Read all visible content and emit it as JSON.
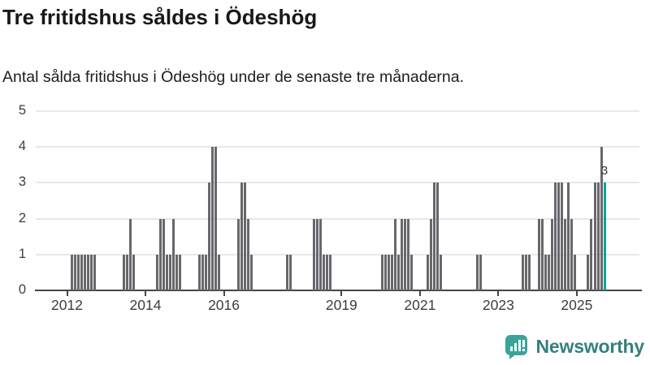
{
  "header": {
    "title": "Tre fritidshus såldes i Ödeshög",
    "subtitle": "Antal sålda fritidshus i Ödeshög under de senaste tre månaderna."
  },
  "chart_data": {
    "type": "bar",
    "title": "Tre fritidshus såldes i Ödeshög",
    "subtitle": "Antal sålda fritidshus i Ödeshög under de senaste tre månaderna.",
    "xlabel": "",
    "ylabel": "",
    "ylim": [
      0,
      5
    ],
    "yticks": [
      0,
      1,
      2,
      3,
      4,
      5
    ],
    "xtick_years": [
      2012,
      2014,
      2016,
      2019,
      2021,
      2023,
      2025
    ],
    "xtick_labels": [
      "2012",
      "2014",
      "2016",
      "2019",
      "2021",
      "2023",
      "2025"
    ],
    "grid": "horizontal",
    "legend": "none",
    "bar_color": "#67676c",
    "highlight_color": "#00a39b",
    "highlight_month": "2025-09",
    "annotation": {
      "month": "2025-09",
      "text": "3"
    },
    "points": [
      {
        "month": "2012-02",
        "value": 1
      },
      {
        "month": "2012-03",
        "value": 1
      },
      {
        "month": "2012-04",
        "value": 1
      },
      {
        "month": "2012-05",
        "value": 1
      },
      {
        "month": "2012-06",
        "value": 1
      },
      {
        "month": "2012-07",
        "value": 1
      },
      {
        "month": "2012-08",
        "value": 1
      },
      {
        "month": "2012-09",
        "value": 1
      },
      {
        "month": "2013-06",
        "value": 1
      },
      {
        "month": "2013-07",
        "value": 1
      },
      {
        "month": "2013-08",
        "value": 2
      },
      {
        "month": "2013-09",
        "value": 1
      },
      {
        "month": "2014-04",
        "value": 1
      },
      {
        "month": "2014-05",
        "value": 2
      },
      {
        "month": "2014-06",
        "value": 2
      },
      {
        "month": "2014-07",
        "value": 1
      },
      {
        "month": "2014-08",
        "value": 1
      },
      {
        "month": "2014-09",
        "value": 2
      },
      {
        "month": "2014-10",
        "value": 1
      },
      {
        "month": "2014-11",
        "value": 1
      },
      {
        "month": "2015-05",
        "value": 1
      },
      {
        "month": "2015-06",
        "value": 1
      },
      {
        "month": "2015-07",
        "value": 1
      },
      {
        "month": "2015-08",
        "value": 3
      },
      {
        "month": "2015-09",
        "value": 4
      },
      {
        "month": "2015-10",
        "value": 4
      },
      {
        "month": "2015-11",
        "value": 1
      },
      {
        "month": "2016-05",
        "value": 2
      },
      {
        "month": "2016-06",
        "value": 3
      },
      {
        "month": "2016-07",
        "value": 3
      },
      {
        "month": "2016-08",
        "value": 2
      },
      {
        "month": "2016-09",
        "value": 1
      },
      {
        "month": "2017-08",
        "value": 1
      },
      {
        "month": "2017-09",
        "value": 1
      },
      {
        "month": "2018-04",
        "value": 2
      },
      {
        "month": "2018-05",
        "value": 2
      },
      {
        "month": "2018-06",
        "value": 2
      },
      {
        "month": "2018-07",
        "value": 1
      },
      {
        "month": "2018-08",
        "value": 1
      },
      {
        "month": "2018-09",
        "value": 1
      },
      {
        "month": "2020-01",
        "value": 1
      },
      {
        "month": "2020-02",
        "value": 1
      },
      {
        "month": "2020-03",
        "value": 1
      },
      {
        "month": "2020-04",
        "value": 1
      },
      {
        "month": "2020-05",
        "value": 2
      },
      {
        "month": "2020-06",
        "value": 1
      },
      {
        "month": "2020-07",
        "value": 2
      },
      {
        "month": "2020-08",
        "value": 2
      },
      {
        "month": "2020-09",
        "value": 2
      },
      {
        "month": "2020-10",
        "value": 1
      },
      {
        "month": "2021-03",
        "value": 1
      },
      {
        "month": "2021-04",
        "value": 2
      },
      {
        "month": "2021-05",
        "value": 3
      },
      {
        "month": "2021-06",
        "value": 3
      },
      {
        "month": "2021-07",
        "value": 1
      },
      {
        "month": "2022-06",
        "value": 1
      },
      {
        "month": "2022-07",
        "value": 1
      },
      {
        "month": "2023-08",
        "value": 1
      },
      {
        "month": "2023-09",
        "value": 1
      },
      {
        "month": "2023-10",
        "value": 1
      },
      {
        "month": "2024-01",
        "value": 2
      },
      {
        "month": "2024-02",
        "value": 2
      },
      {
        "month": "2024-03",
        "value": 1
      },
      {
        "month": "2024-04",
        "value": 1
      },
      {
        "month": "2024-05",
        "value": 2
      },
      {
        "month": "2024-06",
        "value": 3
      },
      {
        "month": "2024-07",
        "value": 3
      },
      {
        "month": "2024-08",
        "value": 3
      },
      {
        "month": "2024-09",
        "value": 2
      },
      {
        "month": "2024-10",
        "value": 3
      },
      {
        "month": "2024-11",
        "value": 2
      },
      {
        "month": "2024-12",
        "value": 1
      },
      {
        "month": "2025-04",
        "value": 1
      },
      {
        "month": "2025-05",
        "value": 2
      },
      {
        "month": "2025-06",
        "value": 3
      },
      {
        "month": "2025-07",
        "value": 3
      },
      {
        "month": "2025-08",
        "value": 4
      },
      {
        "month": "2025-09",
        "value": 3
      }
    ]
  },
  "footer": {
    "brand": "Newsworthy",
    "brand_color": "#35807d",
    "logo_color": "#3ba39a"
  }
}
